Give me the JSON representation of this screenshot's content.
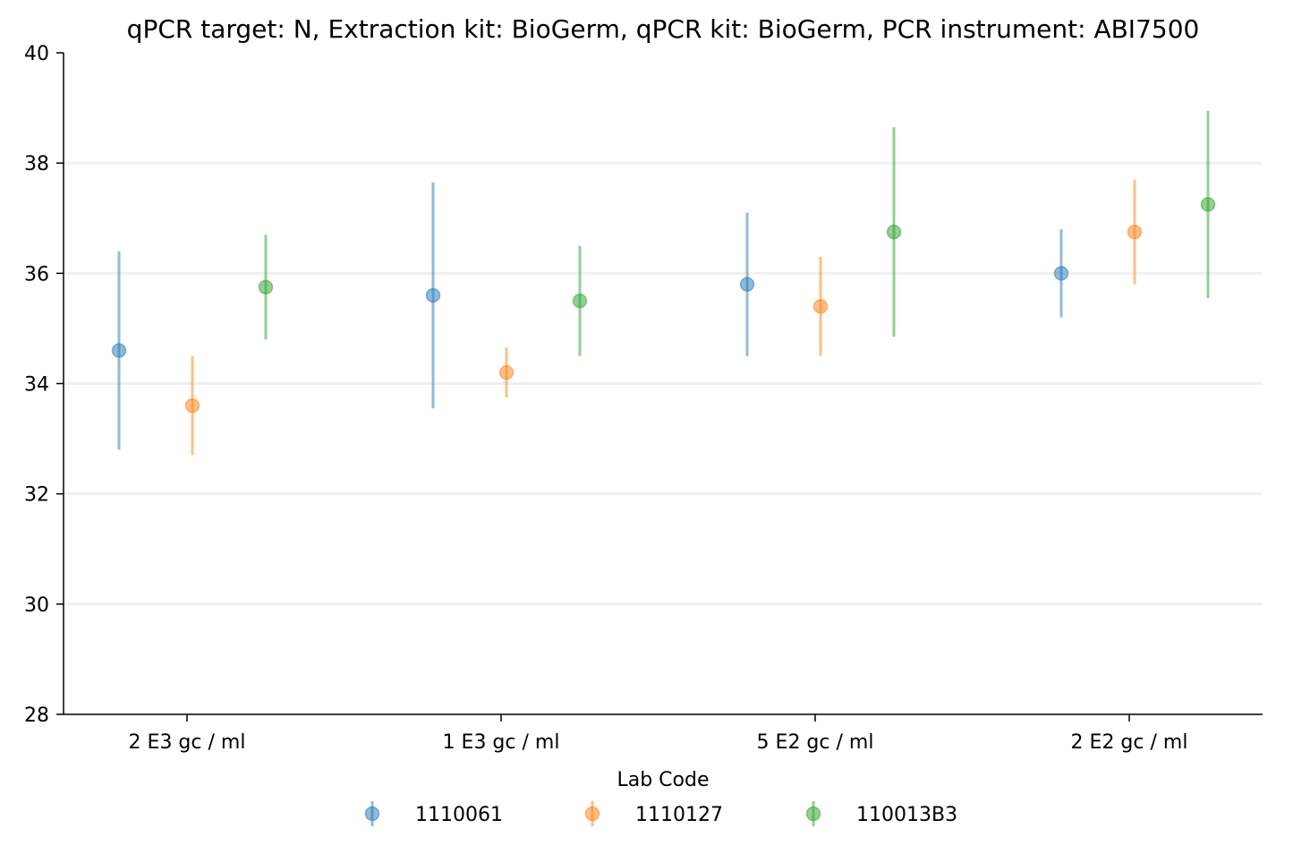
{
  "chart_data": {
    "type": "scatter",
    "title": "qPCR target: N, Extraction kit: BioGerm, qPCR kit: BioGerm, PCR instrument: ABI7500",
    "xlabel": "",
    "ylabel": "",
    "categories": [
      "2 E3 gc / ml",
      "1 E3 gc / ml",
      "5 E2 gc / ml",
      "2 E2 gc / ml"
    ],
    "ylim": [
      28,
      40
    ],
    "yticks": [
      "28",
      "30",
      "32",
      "34",
      "36",
      "38",
      "40"
    ],
    "grid": "horizontal",
    "legend": {
      "title": "Lab Code",
      "placement": "bottom-center"
    },
    "series": [
      {
        "name": "1110061",
        "color": "#1f77b4",
        "values": [
          34.6,
          35.6,
          35.8,
          36.0
        ],
        "lower": [
          32.8,
          33.55,
          34.5,
          35.2
        ],
        "upper": [
          36.4,
          37.65,
          37.1,
          36.8
        ]
      },
      {
        "name": "1110127",
        "color": "#ff7f0e",
        "values": [
          33.6,
          34.2,
          35.4,
          36.75
        ],
        "lower": [
          32.7,
          33.75,
          34.5,
          35.8
        ],
        "upper": [
          34.5,
          34.65,
          36.3,
          37.7
        ]
      },
      {
        "name": "110013B3",
        "color": "#2ca02c",
        "values": [
          35.75,
          35.5,
          36.75,
          37.25
        ],
        "lower": [
          34.8,
          34.5,
          34.85,
          35.55
        ],
        "upper": [
          36.7,
          36.5,
          38.65,
          38.95
        ]
      }
    ]
  }
}
